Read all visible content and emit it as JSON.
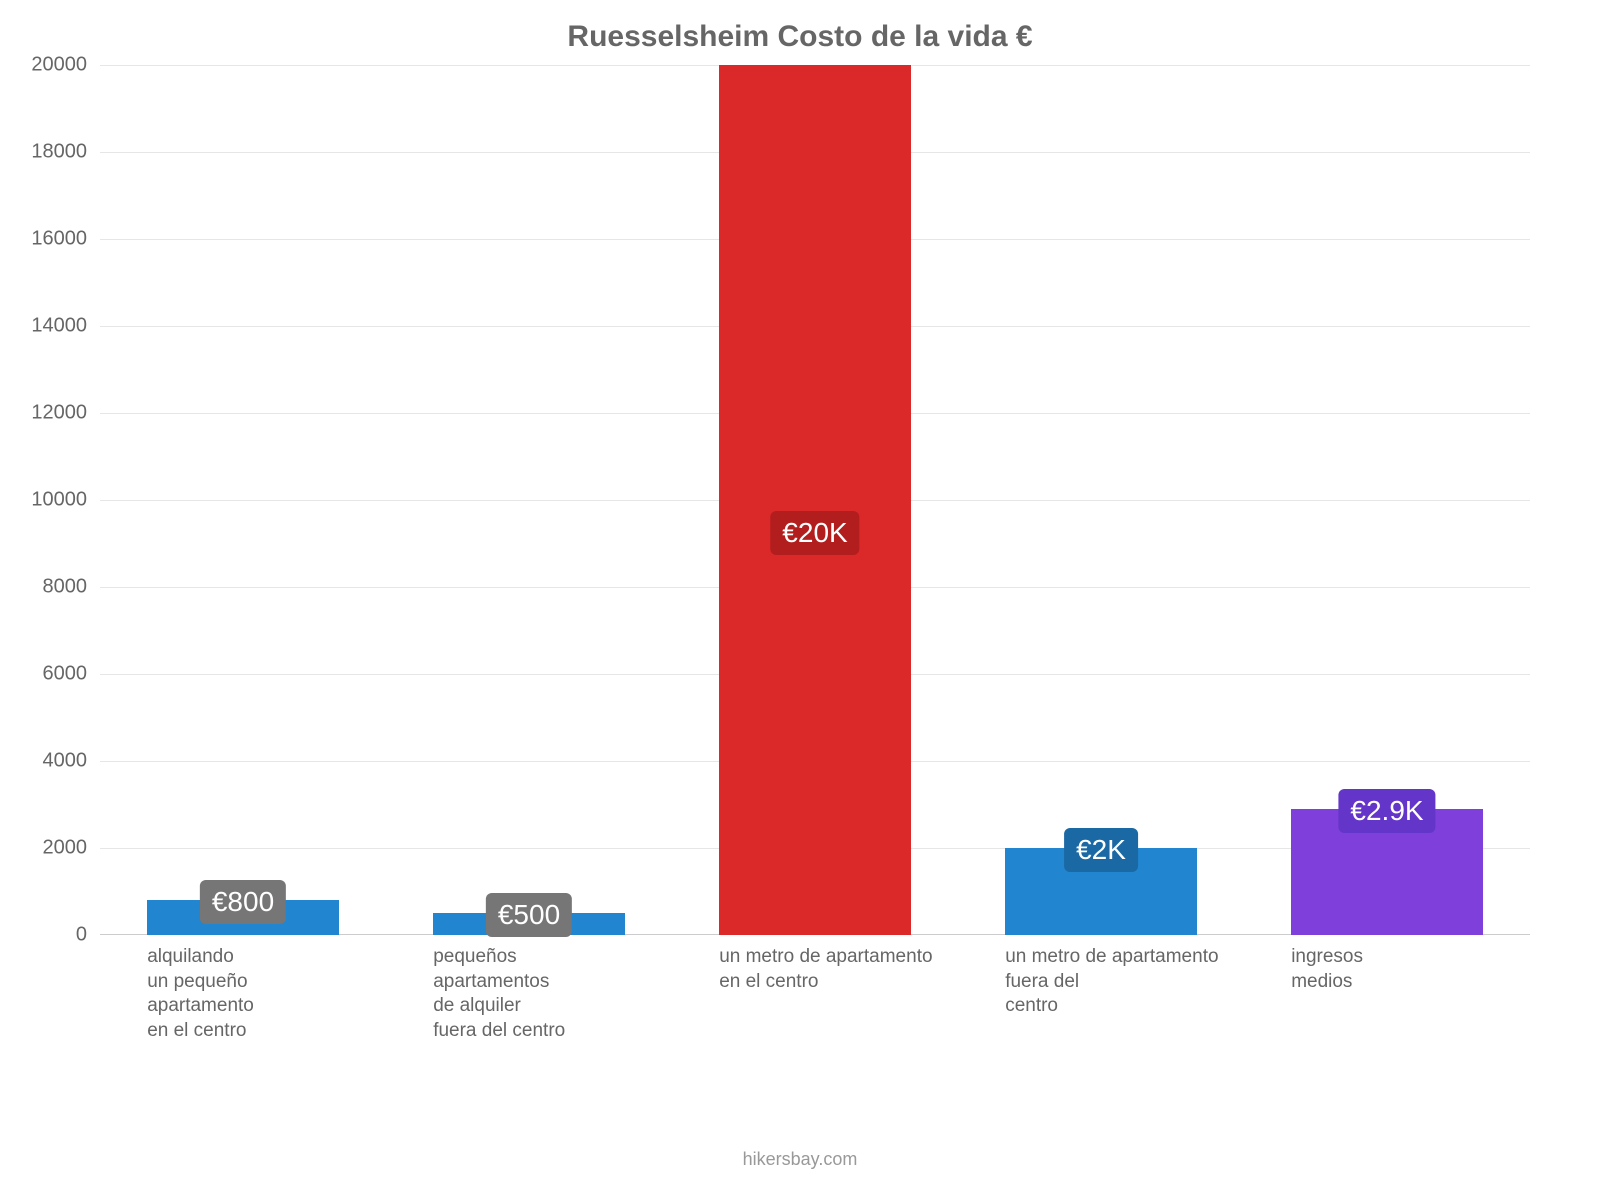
{
  "chart": {
    "type": "bar",
    "title": "Ruesselsheim Costo de la vida €",
    "title_fontsize": 30,
    "title_color": "#666666",
    "background_color": "#ffffff",
    "grid_color": "#e6e6e6",
    "axis_line_color": "#cccccc",
    "y_axis": {
      "min": 0,
      "max": 20000,
      "tick_step": 2000,
      "ticks": [
        "0",
        "2000",
        "4000",
        "6000",
        "8000",
        "10000",
        "12000",
        "14000",
        "16000",
        "18000",
        "20000"
      ],
      "label_fontsize": 20,
      "label_color": "#666666"
    },
    "x_labels": {
      "fontsize": 19,
      "color": "#666666",
      "items": [
        "alquilando\nun pequeño\napartamento\nen el centro",
        "pequeños\napartamentos\nde alquiler\nfuera del centro",
        "un metro de apartamento\nen el centro",
        "un metro de apartamento\nfuera del\ncentro",
        "ingresos\nmedios"
      ]
    },
    "bars": [
      {
        "value": 800,
        "display": "€800",
        "color": "#2185d0",
        "label_bg": "#767676"
      },
      {
        "value": 500,
        "display": "€500",
        "color": "#2185d0",
        "label_bg": "#767676"
      },
      {
        "value": 20000,
        "display": "€20K",
        "color": "#db2828",
        "label_bg": "#b21e1e"
      },
      {
        "value": 2000,
        "display": "€2K",
        "color": "#2185d0",
        "label_bg": "#1a69a4"
      },
      {
        "value": 2900,
        "display": "€2.9K",
        "color": "#7f3fdb",
        "label_bg": "#6435c9"
      }
    ],
    "bar_label_fontsize": 28,
    "bar_width_ratio": 0.67,
    "attribution": "hikersbay.com",
    "attribution_fontsize": 18,
    "attribution_color": "#999999"
  }
}
